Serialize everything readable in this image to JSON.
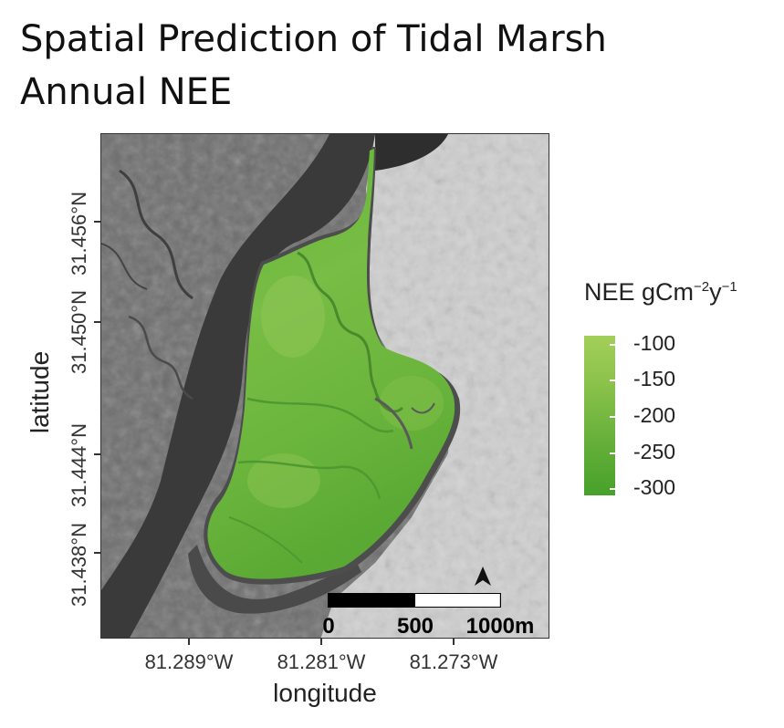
{
  "title_line1": "Spatial Prediction of Tidal Marsh",
  "title_line2": "Annual NEE",
  "xlabel": "longitude",
  "ylabel": "latitude",
  "x_ticks": [
    "81.289°W",
    "81.281°W",
    "81.273°W"
  ],
  "y_ticks": [
    "31.456°N",
    "31.450°N",
    "31.444°N",
    "31.438°N"
  ],
  "legend": {
    "title_main": "NEE gCm",
    "title_exp1": "−2",
    "title_mid": "y",
    "title_exp2": "−1",
    "ticks": [
      "-100",
      "-150",
      "-200",
      "-250",
      "-300"
    ],
    "colors": [
      "#a3cf5a",
      "#46a12a"
    ]
  },
  "scale_bar": {
    "labels": [
      "0",
      "500",
      "1000m"
    ]
  },
  "north_arrow": "north-arrow-icon"
}
